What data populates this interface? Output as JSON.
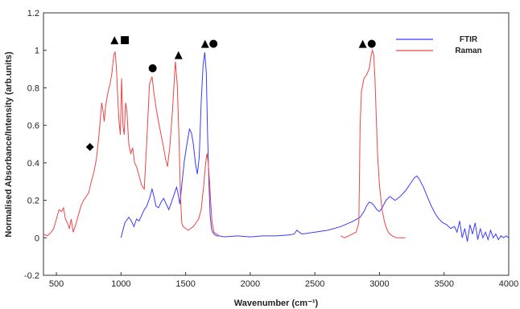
{
  "chart_data": {
    "type": "line",
    "xlabel": "Wavenumber (cm⁻¹)",
    "ylabel": "Normalised Absorbance/Intensity (arb.units)",
    "xlim": [
      400,
      4000
    ],
    "ylim": [
      -0.2,
      1.2
    ],
    "x_ticks": [
      500,
      1000,
      1500,
      2000,
      2500,
      3000,
      3500,
      4000
    ],
    "y_ticks": [
      -0.2,
      0,
      0.2,
      0.4,
      0.6,
      0.8,
      1,
      1.2
    ],
    "x_tick_labels": [
      "500",
      "1000",
      "1500",
      "2000",
      "2500",
      "3000",
      "3500",
      "4000"
    ],
    "y_tick_labels": [
      "-0.2",
      "0",
      "0.2",
      "0.4",
      "0.6",
      "0.8",
      "1",
      "1.2"
    ],
    "grid": false,
    "legend_position": "top-right",
    "series": [
      {
        "name": "FTIR",
        "color": "#3b3bff",
        "x": [
          1000,
          1030,
          1060,
          1080,
          1100,
          1120,
          1140,
          1160,
          1180,
          1200,
          1220,
          1240,
          1255,
          1270,
          1290,
          1310,
          1330,
          1350,
          1370,
          1390,
          1410,
          1430,
          1440,
          1455,
          1470,
          1490,
          1510,
          1530,
          1545,
          1560,
          1575,
          1590,
          1605,
          1620,
          1635,
          1648,
          1660,
          1670,
          1680,
          1690,
          1700,
          1710,
          1720,
          1730,
          1740,
          1760,
          1800,
          1900,
          2000,
          2100,
          2200,
          2300,
          2340,
          2360,
          2380,
          2400,
          2500,
          2600,
          2700,
          2800,
          2850,
          2880,
          2900,
          2920,
          2940,
          2960,
          2980,
          3000,
          3020,
          3050,
          3080,
          3120,
          3160,
          3200,
          3240,
          3270,
          3290,
          3310,
          3340,
          3370,
          3400,
          3430,
          3460,
          3490,
          3520,
          3550,
          3580,
          3600,
          3620,
          3640,
          3660,
          3680,
          3700,
          3720,
          3740,
          3760,
          3780,
          3800,
          3820,
          3840,
          3860,
          3880,
          3900,
          3920,
          3940,
          3960,
          3980,
          4000
        ],
        "values": [
          0.0,
          0.08,
          0.11,
          0.09,
          0.06,
          0.1,
          0.09,
          0.12,
          0.15,
          0.17,
          0.21,
          0.26,
          0.22,
          0.17,
          0.16,
          0.19,
          0.21,
          0.18,
          0.15,
          0.19,
          0.23,
          0.27,
          0.24,
          0.18,
          0.28,
          0.41,
          0.5,
          0.58,
          0.56,
          0.5,
          0.4,
          0.34,
          0.43,
          0.72,
          0.92,
          0.99,
          0.88,
          0.55,
          0.3,
          0.12,
          0.05,
          0.03,
          0.02,
          0.015,
          0.01,
          0.01,
          0.005,
          0.01,
          0.005,
          0.01,
          0.01,
          0.015,
          0.02,
          0.04,
          0.03,
          0.02,
          0.03,
          0.04,
          0.06,
          0.09,
          0.11,
          0.14,
          0.17,
          0.19,
          0.185,
          0.17,
          0.15,
          0.14,
          0.16,
          0.2,
          0.22,
          0.2,
          0.22,
          0.25,
          0.29,
          0.32,
          0.33,
          0.31,
          0.27,
          0.22,
          0.17,
          0.13,
          0.1,
          0.08,
          0.07,
          0.05,
          0.06,
          0.03,
          0.09,
          0.0,
          0.05,
          -0.02,
          0.07,
          0.02,
          0.08,
          -0.01,
          0.05,
          0.0,
          0.03,
          -0.01,
          0.04,
          0.0,
          0.02,
          -0.01,
          0.01,
          0.0,
          0.01,
          0.0
        ]
      },
      {
        "name": "Raman",
        "color": "#ee4444",
        "x": [
          400,
          430,
          460,
          480,
          500,
          520,
          540,
          555,
          570,
          585,
          600,
          615,
          630,
          650,
          670,
          690,
          710,
          730,
          750,
          770,
          790,
          810,
          830,
          850,
          860,
          870,
          880,
          900,
          915,
          930,
          945,
          955,
          965,
          975,
          985,
          995,
          1005,
          1015,
          1025,
          1035,
          1045,
          1060,
          1075,
          1090,
          1105,
          1120,
          1140,
          1160,
          1180,
          1200,
          1220,
          1240,
          1255,
          1270,
          1290,
          1310,
          1330,
          1345,
          1360,
          1380,
          1400,
          1420,
          1435,
          1450,
          1460,
          1470,
          1480,
          1500,
          1520,
          1540,
          1560,
          1580,
          1600,
          1620,
          1640,
          1655,
          1665,
          1675,
          1685,
          1695,
          1705,
          1720,
          1740,
          1760
        ],
        "values": [
          0.02,
          0.01,
          0.03,
          0.05,
          0.1,
          0.15,
          0.14,
          0.16,
          0.1,
          0.08,
          0.05,
          0.1,
          0.03,
          0.07,
          0.12,
          0.17,
          0.2,
          0.22,
          0.24,
          0.3,
          0.35,
          0.42,
          0.55,
          0.72,
          0.68,
          0.62,
          0.7,
          0.78,
          0.82,
          0.88,
          0.98,
          0.99,
          0.9,
          0.75,
          0.62,
          0.55,
          0.85,
          0.6,
          0.55,
          0.72,
          0.68,
          0.5,
          0.45,
          0.48,
          0.4,
          0.38,
          0.33,
          0.28,
          0.26,
          0.52,
          0.82,
          0.86,
          0.77,
          0.7,
          0.62,
          0.55,
          0.48,
          0.42,
          0.38,
          0.5,
          0.7,
          0.94,
          0.82,
          0.5,
          0.22,
          0.08,
          0.06,
          0.05,
          0.04,
          0.05,
          0.06,
          0.08,
          0.1,
          0.15,
          0.28,
          0.4,
          0.45,
          0.4,
          0.3,
          0.18,
          0.08,
          0.03,
          0.02,
          0.01
        ]
      },
      {
        "name": "Raman",
        "color": "#ee4444",
        "x": [
          2700,
          2730,
          2760,
          2790,
          2820,
          2840,
          2850,
          2860,
          2880,
          2900,
          2920,
          2935,
          2945,
          2955,
          2965,
          2975,
          2985,
          3000,
          3020,
          3040,
          3060,
          3080,
          3100,
          3130,
          3160,
          3200
        ],
        "values": [
          0.01,
          0.0,
          0.01,
          0.02,
          0.03,
          0.08,
          0.6,
          0.78,
          0.85,
          0.87,
          0.9,
          0.97,
          1.0,
          0.98,
          0.85,
          0.65,
          0.45,
          0.28,
          0.15,
          0.08,
          0.04,
          0.02,
          0.01,
          0.0,
          0.0,
          0.0
        ]
      }
    ],
    "legend": [
      "FTIR",
      "Raman"
    ],
    "annotations": [
      {
        "symbol": "▲",
        "x": 950,
        "y": 1.04
      },
      {
        "symbol": "■",
        "x": 1030,
        "y": 1.04
      },
      {
        "symbol": "●",
        "x": 1245,
        "y": 0.89
      },
      {
        "symbol": "▲",
        "x": 1445,
        "y": 0.96
      },
      {
        "symbol": "▲",
        "x": 1650,
        "y": 1.02
      },
      {
        "symbol": "●",
        "x": 1715,
        "y": 1.02
      },
      {
        "symbol": "◆",
        "x": 760,
        "y": 0.47
      },
      {
        "symbol": "▲",
        "x": 2870,
        "y": 1.02
      },
      {
        "symbol": "●",
        "x": 2940,
        "y": 1.02
      }
    ]
  }
}
